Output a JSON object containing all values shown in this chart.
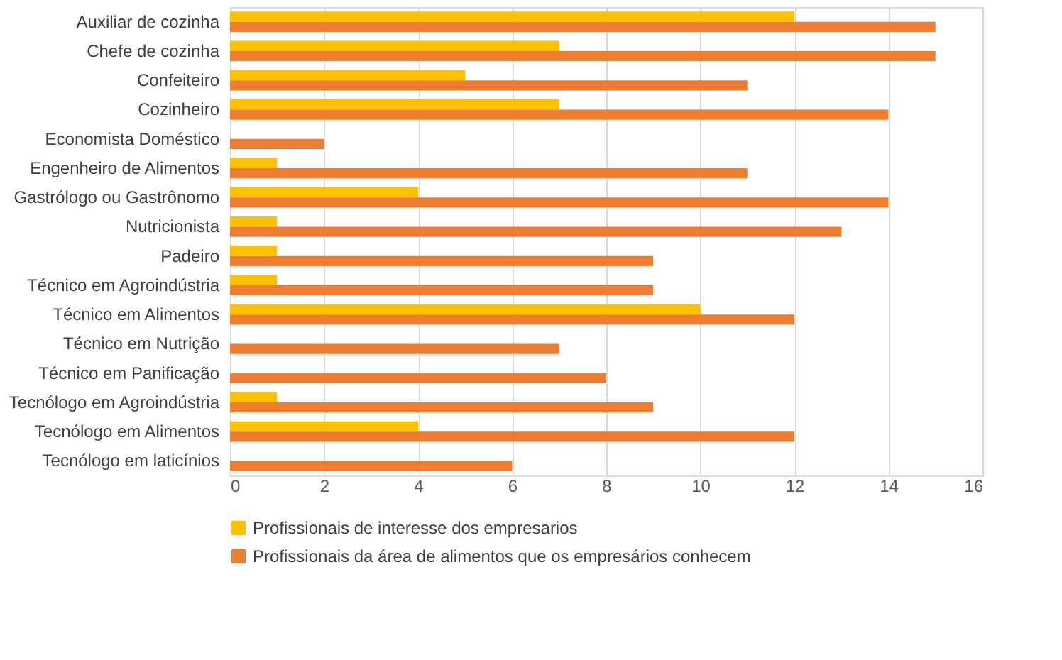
{
  "chart_data": {
    "type": "bar",
    "orientation": "horizontal",
    "categories": [
      "Auxiliar de cozinha",
      "Chefe de cozinha",
      "Confeiteiro",
      "Cozinheiro",
      "Economista Doméstico",
      "Engenheiro de Alimentos",
      "Gastrólogo ou Gastrônomo",
      "Nutricionista",
      "Padeiro",
      "Técnico em Agroindústria",
      "Técnico em Alimentos",
      "Técnico em Nutrição",
      "Técnico em Panificação",
      "Tecnólogo em Agroindústria",
      "Tecnólogo em Alimentos",
      "Tecnólogo em laticínios"
    ],
    "series": [
      {
        "name": "Profissionais de interesse dos empresarios",
        "color": "#ffc000",
        "values": [
          12,
          7,
          5,
          7,
          0,
          1,
          4,
          1,
          1,
          1,
          10,
          0,
          0,
          1,
          4,
          0
        ]
      },
      {
        "name": "Profissionais da área de alimentos que os empresários conhecem",
        "color": "#ed7d31",
        "values": [
          15,
          15,
          11,
          14,
          2,
          11,
          14,
          13,
          9,
          9,
          12,
          7,
          8,
          9,
          12,
          6
        ]
      }
    ],
    "xlim": [
      0,
      16
    ],
    "xticks": [
      0,
      2,
      4,
      6,
      8,
      10,
      12,
      14,
      16
    ],
    "grid": "x",
    "legend": "bottom"
  }
}
